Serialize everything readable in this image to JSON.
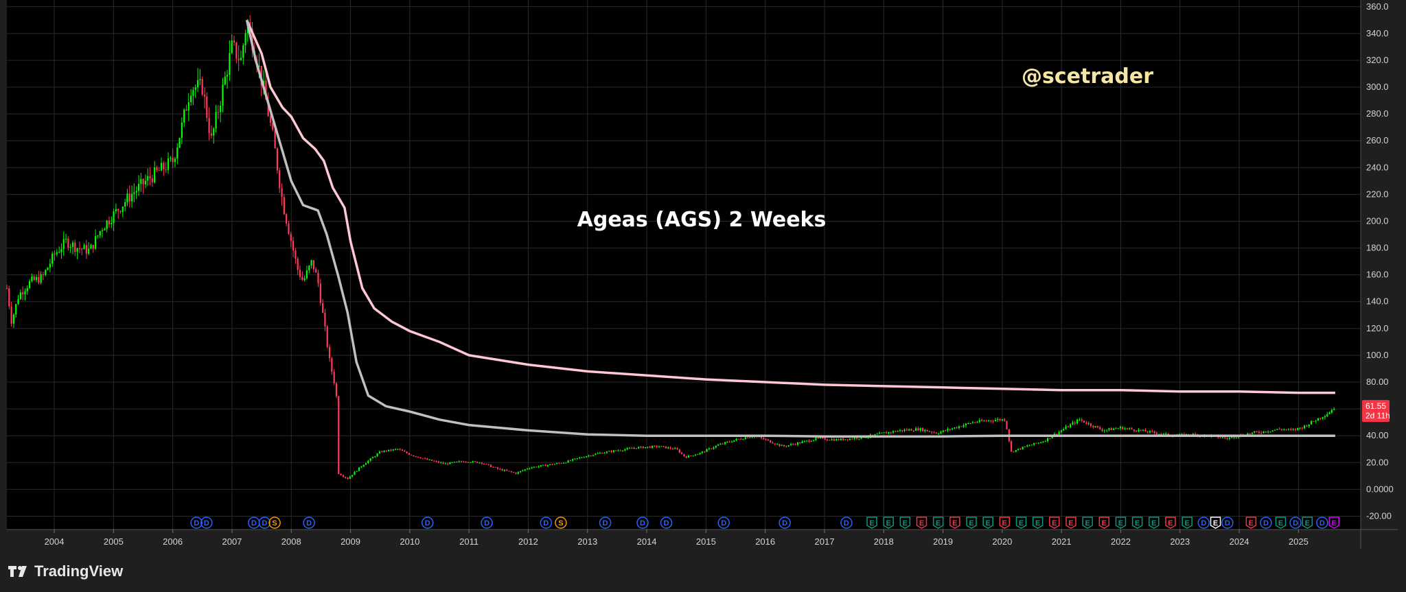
{
  "chart_data": {
    "type": "candlestick",
    "title": "Ageas (AGS) 2 Weeks",
    "watermark": "@scetrader",
    "interval": "2 Weeks",
    "yaxis": {
      "min": -30,
      "max": 365,
      "ticks": [
        "360.0",
        "340.0",
        "320.0",
        "300.0",
        "280.0",
        "260.0",
        "240.0",
        "220.0",
        "200.0",
        "180.0",
        "160.0",
        "140.0",
        "120.0",
        "100.0",
        "80.00",
        "60.00",
        "40.00",
        "20.00",
        "0.0000",
        "-20.00"
      ]
    },
    "xaxis": {
      "min": 2003.2,
      "max": 2026.05,
      "ticks": [
        "2004",
        "2005",
        "2006",
        "2007",
        "2008",
        "2009",
        "2010",
        "2011",
        "2012",
        "2013",
        "2014",
        "2015",
        "2016",
        "2017",
        "2018",
        "2019",
        "2020",
        "2021",
        "2022",
        "2023",
        "2024",
        "2025"
      ]
    },
    "last_price": {
      "value": "61.55",
      "countdown": "2d 11h",
      "color": "#f23645"
    },
    "candle_colors": {
      "up": "#00ff00",
      "down": "#ff3b5c"
    },
    "price_path": [
      [
        2003.2,
        150
      ],
      [
        2003.28,
        125
      ],
      [
        2003.4,
        145
      ],
      [
        2003.6,
        155
      ],
      [
        2003.8,
        158
      ],
      [
        2004.0,
        175
      ],
      [
        2004.2,
        185
      ],
      [
        2004.4,
        180
      ],
      [
        2004.6,
        178
      ],
      [
        2004.8,
        195
      ],
      [
        2005.0,
        205
      ],
      [
        2005.3,
        220
      ],
      [
        2005.6,
        232
      ],
      [
        2005.85,
        240
      ],
      [
        2006.0,
        245
      ],
      [
        2006.15,
        270
      ],
      [
        2006.3,
        300
      ],
      [
        2006.5,
        300
      ],
      [
        2006.65,
        260
      ],
      [
        2006.8,
        290
      ],
      [
        2007.0,
        330
      ],
      [
        2007.15,
        320
      ],
      [
        2007.25,
        350
      ],
      [
        2007.4,
        325
      ],
      [
        2007.55,
        295
      ],
      [
        2007.7,
        260
      ],
      [
        2007.85,
        215
      ],
      [
        2008.0,
        185
      ],
      [
        2008.1,
        165
      ],
      [
        2008.2,
        155
      ],
      [
        2008.35,
        170
      ],
      [
        2008.45,
        155
      ],
      [
        2008.55,
        125
      ],
      [
        2008.65,
        95
      ],
      [
        2008.75,
        75
      ],
      [
        2008.78,
        60
      ],
      [
        2008.8,
        12
      ],
      [
        2008.95,
        8
      ],
      [
        2009.2,
        18
      ],
      [
        2009.5,
        28
      ],
      [
        2009.8,
        30
      ],
      [
        2010.0,
        26
      ],
      [
        2010.3,
        22
      ],
      [
        2010.6,
        19
      ],
      [
        2010.9,
        21
      ],
      [
        2011.2,
        20
      ],
      [
        2011.5,
        15
      ],
      [
        2011.8,
        12
      ],
      [
        2012.0,
        16
      ],
      [
        2012.3,
        18
      ],
      [
        2012.6,
        20
      ],
      [
        2012.9,
        24
      ],
      [
        2013.2,
        27
      ],
      [
        2013.5,
        29
      ],
      [
        2013.8,
        31
      ],
      [
        2014.2,
        32
      ],
      [
        2014.5,
        30
      ],
      [
        2014.65,
        24
      ],
      [
        2014.9,
        27
      ],
      [
        2015.2,
        33
      ],
      [
        2015.5,
        37
      ],
      [
        2015.8,
        40
      ],
      [
        2016.0,
        37
      ],
      [
        2016.3,
        32
      ],
      [
        2016.6,
        35
      ],
      [
        2016.9,
        38
      ],
      [
        2017.2,
        37
      ],
      [
        2017.5,
        38
      ],
      [
        2017.8,
        40
      ],
      [
        2018.0,
        42
      ],
      [
        2018.3,
        44
      ],
      [
        2018.6,
        45
      ],
      [
        2018.9,
        42
      ],
      [
        2019.2,
        46
      ],
      [
        2019.5,
        50
      ],
      [
        2019.9,
        52
      ],
      [
        2020.05,
        52
      ],
      [
        2020.15,
        28
      ],
      [
        2020.4,
        32
      ],
      [
        2020.7,
        36
      ],
      [
        2021.0,
        44
      ],
      [
        2021.3,
        52
      ],
      [
        2021.5,
        48
      ],
      [
        2021.7,
        44
      ],
      [
        2022.0,
        46
      ],
      [
        2022.3,
        44
      ],
      [
        2022.6,
        42
      ],
      [
        2022.9,
        40
      ],
      [
        2023.2,
        41
      ],
      [
        2023.5,
        40
      ],
      [
        2023.8,
        38
      ],
      [
        2024.0,
        40
      ],
      [
        2024.2,
        42
      ],
      [
        2024.4,
        43
      ],
      [
        2024.7,
        45
      ],
      [
        2024.9,
        44
      ],
      [
        2025.1,
        47
      ],
      [
        2025.3,
        52
      ],
      [
        2025.5,
        57
      ],
      [
        2025.62,
        61.55
      ]
    ],
    "series": [
      {
        "color": "#ffc8d2",
        "values": [
          [
            2007.25,
            350
          ],
          [
            2007.5,
            325
          ],
          [
            2007.65,
            300
          ],
          [
            2007.85,
            285
          ],
          [
            2008.0,
            278
          ],
          [
            2008.2,
            262
          ],
          [
            2008.4,
            254
          ],
          [
            2008.55,
            245
          ],
          [
            2008.7,
            225
          ],
          [
            2008.9,
            210
          ],
          [
            2009.0,
            185
          ],
          [
            2009.2,
            150
          ],
          [
            2009.4,
            135
          ],
          [
            2009.7,
            125
          ],
          [
            2010.0,
            118
          ],
          [
            2010.5,
            110
          ],
          [
            2011.0,
            100
          ],
          [
            2012.0,
            93
          ],
          [
            2013.0,
            88
          ],
          [
            2014.0,
            85
          ],
          [
            2015.0,
            82
          ],
          [
            2016.0,
            80
          ],
          [
            2017.0,
            78
          ],
          [
            2018.0,
            77
          ],
          [
            2019.0,
            76
          ],
          [
            2020.0,
            75
          ],
          [
            2021.0,
            74
          ],
          [
            2022.0,
            74
          ],
          [
            2023.0,
            73
          ],
          [
            2024.0,
            73
          ],
          [
            2025.0,
            72
          ],
          [
            2025.62,
            72
          ]
        ]
      },
      {
        "color": "#c0c0c0",
        "values": [
          [
            2007.25,
            350
          ],
          [
            2007.4,
            320
          ],
          [
            2007.6,
            290
          ],
          [
            2007.8,
            260
          ],
          [
            2008.0,
            230
          ],
          [
            2008.2,
            212
          ],
          [
            2008.45,
            208
          ],
          [
            2008.6,
            190
          ],
          [
            2008.8,
            158
          ],
          [
            2008.95,
            132
          ],
          [
            2009.1,
            95
          ],
          [
            2009.3,
            70
          ],
          [
            2009.6,
            62
          ],
          [
            2010.0,
            58
          ],
          [
            2010.5,
            52
          ],
          [
            2011.0,
            48
          ],
          [
            2012.0,
            44
          ],
          [
            2013.0,
            41
          ],
          [
            2014.0,
            40
          ],
          [
            2015.0,
            40
          ],
          [
            2016.0,
            40
          ],
          [
            2017.0,
            39.5
          ],
          [
            2018.0,
            39.5
          ],
          [
            2019.0,
            39.5
          ],
          [
            2020.0,
            40
          ],
          [
            2021.0,
            40
          ],
          [
            2022.0,
            40
          ],
          [
            2023.0,
            40
          ],
          [
            2024.0,
            40
          ],
          [
            2025.0,
            40
          ],
          [
            2025.62,
            40
          ]
        ]
      }
    ],
    "events": [
      {
        "x": 2006.4,
        "label": "D",
        "color": "#2962ff"
      },
      {
        "x": 2006.57,
        "label": "D",
        "color": "#2962ff"
      },
      {
        "x": 2007.37,
        "label": "D",
        "color": "#2962ff"
      },
      {
        "x": 2007.55,
        "label": "D",
        "color": "#2962ff"
      },
      {
        "x": 2007.72,
        "label": "S",
        "color": "#ff9800"
      },
      {
        "x": 2008.3,
        "label": "D",
        "color": "#2962ff"
      },
      {
        "x": 2010.3,
        "label": "D",
        "color": "#2962ff"
      },
      {
        "x": 2011.3,
        "label": "D",
        "color": "#2962ff"
      },
      {
        "x": 2012.3,
        "label": "D",
        "color": "#2962ff"
      },
      {
        "x": 2012.55,
        "label": "S",
        "color": "#ff9800"
      },
      {
        "x": 2013.3,
        "label": "D",
        "color": "#2962ff"
      },
      {
        "x": 2013.93,
        "label": "D",
        "color": "#2962ff"
      },
      {
        "x": 2014.33,
        "label": "D",
        "color": "#2962ff"
      },
      {
        "x": 2015.3,
        "label": "D",
        "color": "#2962ff"
      },
      {
        "x": 2016.33,
        "label": "D",
        "color": "#2962ff"
      },
      {
        "x": 2017.37,
        "label": "D",
        "color": "#2962ff"
      },
      {
        "x": 2017.8,
        "label": "E",
        "color": "#089981"
      },
      {
        "x": 2018.08,
        "label": "E",
        "color": "#089981"
      },
      {
        "x": 2018.36,
        "label": "E",
        "color": "#089981"
      },
      {
        "x": 2018.64,
        "label": "E",
        "color": "#f23645"
      },
      {
        "x": 2018.92,
        "label": "E",
        "color": "#089981"
      },
      {
        "x": 2019.2,
        "label": "E",
        "color": "#f23645"
      },
      {
        "x": 2019.48,
        "label": "E",
        "color": "#089981"
      },
      {
        "x": 2019.76,
        "label": "E",
        "color": "#089981"
      },
      {
        "x": 2020.04,
        "label": "E",
        "color": "#f23645"
      },
      {
        "x": 2020.32,
        "label": "E",
        "color": "#089981"
      },
      {
        "x": 2020.6,
        "label": "E",
        "color": "#089981"
      },
      {
        "x": 2020.88,
        "label": "E",
        "color": "#f23645"
      },
      {
        "x": 2021.16,
        "label": "E",
        "color": "#f23645"
      },
      {
        "x": 2021.44,
        "label": "E",
        "color": "#089981"
      },
      {
        "x": 2021.72,
        "label": "E",
        "color": "#f23645"
      },
      {
        "x": 2022.0,
        "label": "E",
        "color": "#089981"
      },
      {
        "x": 2022.28,
        "label": "E",
        "color": "#089981"
      },
      {
        "x": 2022.56,
        "label": "E",
        "color": "#089981"
      },
      {
        "x": 2022.84,
        "label": "E",
        "color": "#f23645"
      },
      {
        "x": 2023.12,
        "label": "E",
        "color": "#089981"
      },
      {
        "x": 2023.4,
        "label": "D",
        "color": "#2962ff"
      },
      {
        "x": 2023.6,
        "label": "E",
        "color": "#ffffff"
      },
      {
        "x": 2023.8,
        "label": "D",
        "color": "#2962ff"
      },
      {
        "x": 2024.2,
        "label": "E",
        "color": "#f23645"
      },
      {
        "x": 2024.45,
        "label": "D",
        "color": "#2962ff"
      },
      {
        "x": 2024.7,
        "label": "E",
        "color": "#089981"
      },
      {
        "x": 2024.95,
        "label": "D",
        "color": "#2962ff"
      },
      {
        "x": 2025.15,
        "label": "E",
        "color": "#089981"
      },
      {
        "x": 2025.4,
        "label": "D",
        "color": "#2962ff"
      },
      {
        "x": 2025.6,
        "label": "E",
        "color": "#d500f9"
      }
    ],
    "grid": true
  },
  "branding": {
    "name": "TradingView"
  },
  "colors": {
    "background": "#000000",
    "grid": "#2a2a2a",
    "axis_text": "#d1d4dc",
    "watermark": "#f5e6a3",
    "title": "#ffffff"
  }
}
